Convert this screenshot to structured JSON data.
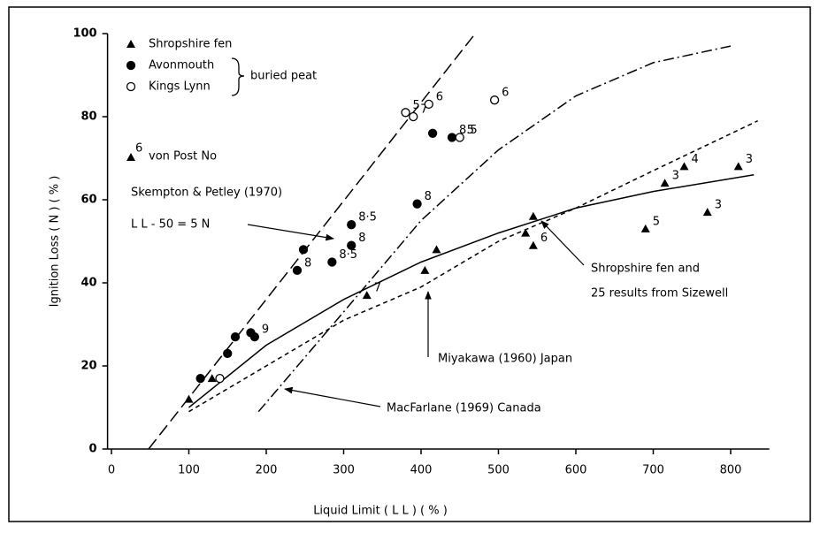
{
  "chart_data": {
    "type": "scatter",
    "xlabel": "Liquid Limit ( L L ) ( % )",
    "ylabel": "Ignition Loss ( N ) ( % )",
    "xlim": [
      -5,
      850
    ],
    "ylim": [
      0,
      100
    ],
    "xticks": [
      0,
      100,
      200,
      300,
      400,
      500,
      600,
      700,
      800
    ],
    "yticks": [
      0,
      20,
      40,
      60,
      80,
      100
    ],
    "color": "#000000",
    "series": [
      {
        "name": "Shropshire fen",
        "marker": "triangle",
        "x": [
          100,
          130,
          330,
          405,
          420,
          535,
          545,
          545,
          690,
          715,
          740,
          770,
          810
        ],
        "values": [
          12,
          17,
          37,
          43,
          48,
          52,
          56,
          49,
          53,
          64,
          68,
          57,
          68
        ],
        "labels": [
          null,
          null,
          "7",
          null,
          null,
          null,
          null,
          "6",
          "5",
          "3",
          "4",
          "3",
          "3"
        ]
      },
      {
        "name": "Avonmouth",
        "marker": "filled-circle",
        "x": [
          115,
          150,
          160,
          180,
          185,
          240,
          248,
          285,
          310,
          310,
          395,
          415,
          440
        ],
        "values": [
          17,
          23,
          27,
          28,
          27,
          43,
          48,
          45,
          49,
          54,
          59,
          76,
          75
        ],
        "labels": [
          null,
          null,
          null,
          null,
          "9",
          "8",
          null,
          "8·5",
          "8",
          "8·5",
          "8",
          null,
          "8.5"
        ]
      },
      {
        "name": "Kings Lynn",
        "marker": "open-circle",
        "x": [
          140,
          380,
          390,
          410,
          450,
          495
        ],
        "values": [
          17,
          81,
          80,
          83,
          75,
          84
        ],
        "labels": [
          null,
          "5",
          "7",
          "6",
          "5",
          "6"
        ]
      }
    ],
    "legend_group": "buried peat",
    "von_post": {
      "sup": "6",
      "text": "von Post No"
    },
    "lines": [
      {
        "style": "long-dash",
        "x": [
          48,
          470
        ],
        "values": [
          0,
          100
        ]
      },
      {
        "style": "solid",
        "x": [
          100,
          200,
          300,
          400,
          500,
          600,
          700,
          830
        ],
        "values": [
          10,
          25,
          36,
          45,
          52,
          58,
          62,
          66
        ]
      },
      {
        "style": "dash-dot",
        "x": [
          190,
          300,
          400,
          500,
          600,
          700,
          800
        ],
        "values": [
          9,
          33,
          55,
          72,
          85,
          93,
          97
        ]
      },
      {
        "style": "short-dash",
        "x": [
          100,
          200,
          300,
          400,
          500,
          600,
          700,
          835
        ],
        "values": [
          9,
          20,
          31,
          39,
          50,
          58,
          67,
          79
        ]
      }
    ],
    "annotations": [
      "Skempton & Petley (1970)",
      "L L - 50 = 5 N",
      "Shropshire fen and",
      "25 results from Sizewell",
      "Miyakawa (1960)    Japan",
      "MacFarlane (1969)  Canada"
    ]
  }
}
